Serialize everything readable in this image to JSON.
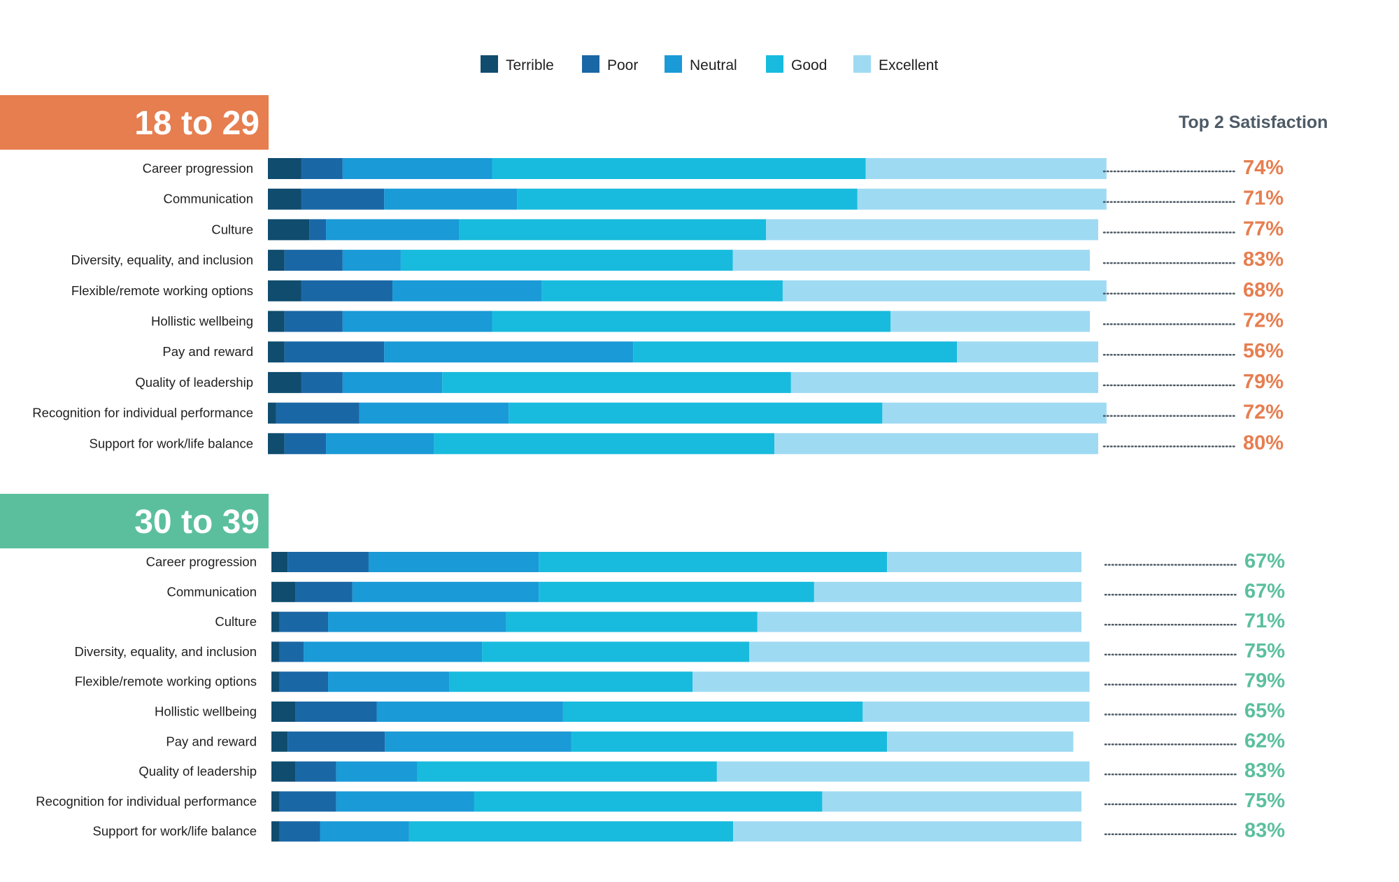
{
  "legend": [
    "Terrible",
    "Poor",
    "Neutral",
    "Good",
    "Excellent"
  ],
  "colors": {
    "Terrible": "#0f4c6e",
    "Poor": "#1a67a6",
    "Neutral": "#1a9ad7",
    "Good": "#18bbdd",
    "Excellent": "#9fdaf3",
    "section_1": "#e67e50",
    "section_2": "#5bbf9e",
    "dots": "#4e5b66"
  },
  "top2_header": "Top 2 Satisfaction",
  "chart_data": [
    {
      "type": "bar",
      "orientation": "horizontal",
      "stacked": true,
      "title": "18 to 29",
      "accent": "#e67e50",
      "categories": [
        "Career progression",
        "Communication",
        "Culture",
        "Diversity, equality, and inclusion",
        "Flexible/remote working options",
        "Hollistic wellbeing",
        "Pay and reward",
        "Quality of leadership",
        "Recognition for individual performance",
        "Support for work/life balance"
      ],
      "series": [
        {
          "name": "Terrible",
          "values": [
            4,
            4,
            5,
            2,
            4,
            2,
            2,
            4,
            1,
            2
          ]
        },
        {
          "name": "Poor",
          "values": [
            5,
            10,
            2,
            7,
            11,
            7,
            12,
            5,
            10,
            5
          ]
        },
        {
          "name": "Neutral",
          "values": [
            18,
            16,
            16,
            7,
            18,
            18,
            30,
            12,
            18,
            13
          ]
        },
        {
          "name": "Good",
          "values": [
            45,
            41,
            37,
            40,
            29,
            48,
            39,
            42,
            45,
            41
          ]
        },
        {
          "name": "Excellent",
          "values": [
            29,
            30,
            40,
            43,
            39,
            24,
            17,
            37,
            27,
            39
          ]
        }
      ],
      "top2": [
        "74%",
        "71%",
        "77%",
        "83%",
        "68%",
        "72%",
        "56%",
        "79%",
        "72%",
        "80%"
      ]
    },
    {
      "type": "bar",
      "orientation": "horizontal",
      "stacked": true,
      "title": "30 to 39",
      "accent": "#5bbf9e",
      "categories": [
        "Career progression",
        "Communication",
        "Culture",
        "Diversity, equality, and inclusion",
        "Flexible/remote working options",
        "Hollistic wellbeing",
        "Pay and reward",
        "Quality of leadership",
        "Recognition for individual performance",
        "Support for work/life balance"
      ],
      "series": [
        {
          "name": "Terrible",
          "values": [
            2,
            3,
            1,
            1,
            1,
            3,
            2,
            3,
            1,
            1
          ]
        },
        {
          "name": "Poor",
          "values": [
            10,
            7,
            6,
            3,
            6,
            10,
            12,
            5,
            7,
            5
          ]
        },
        {
          "name": "Neutral",
          "values": [
            21,
            23,
            22,
            22,
            15,
            23,
            23,
            10,
            17,
            11
          ]
        },
        {
          "name": "Good",
          "values": [
            43,
            34,
            31,
            33,
            30,
            37,
            39,
            37,
            43,
            40
          ]
        },
        {
          "name": "Excellent",
          "values": [
            24,
            33,
            40,
            42,
            49,
            28,
            23,
            46,
            32,
            43
          ]
        }
      ],
      "top2": [
        "67%",
        "67%",
        "71%",
        "75%",
        "79%",
        "65%",
        "62%",
        "83%",
        "75%",
        "83%"
      ]
    }
  ]
}
